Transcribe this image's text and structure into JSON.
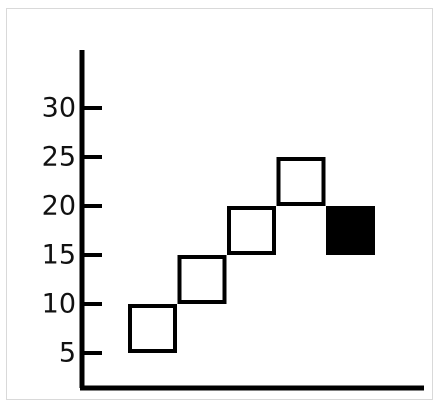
{
  "chart_data": {
    "type": "scatter",
    "title": "",
    "xlabel": "",
    "ylabel": "",
    "y_ticks": [
      "5",
      "10",
      "15",
      "20",
      "25",
      "30"
    ],
    "ylim": [
      0,
      35
    ],
    "x_ticks": [],
    "series": [
      {
        "marker": "hollow-square",
        "points": [
          {
            "x": 1,
            "y": 7.5
          },
          {
            "x": 2,
            "y": 12.5
          },
          {
            "x": 3,
            "y": 17.5
          },
          {
            "x": 4,
            "y": 22.5
          }
        ]
      },
      {
        "marker": "filled-square",
        "points": [
          {
            "x": 5,
            "y": 17.5
          }
        ]
      }
    ],
    "grid": false,
    "legend": "none",
    "colors": {
      "axis": "#000000",
      "marker_stroke": "#000000",
      "filled_marker": "#000000",
      "hollow_marker_fill": "#ffffff"
    }
  }
}
